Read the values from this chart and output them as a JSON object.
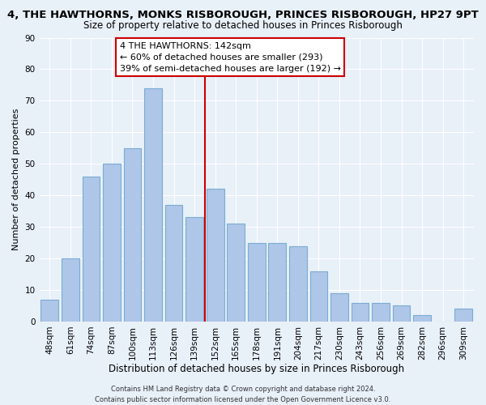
{
  "title": "4, THE HAWTHORNS, MONKS RISBOROUGH, PRINCES RISBOROUGH, HP27 9PT",
  "subtitle": "Size of property relative to detached houses in Princes Risborough",
  "xlabel": "Distribution of detached houses by size in Princes Risborough",
  "ylabel": "Number of detached properties",
  "footer_line1": "Contains HM Land Registry data © Crown copyright and database right 2024.",
  "footer_line2": "Contains public sector information licensed under the Open Government Licence v3.0.",
  "bar_labels": [
    "48sqm",
    "61sqm",
    "74sqm",
    "87sqm",
    "100sqm",
    "113sqm",
    "126sqm",
    "139sqm",
    "152sqm",
    "165sqm",
    "178sqm",
    "191sqm",
    "204sqm",
    "217sqm",
    "230sqm",
    "243sqm",
    "256sqm",
    "269sqm",
    "282sqm",
    "296sqm",
    "309sqm"
  ],
  "bar_values": [
    7,
    20,
    46,
    50,
    55,
    74,
    37,
    33,
    42,
    31,
    25,
    25,
    24,
    16,
    9,
    6,
    6,
    5,
    2,
    0,
    4
  ],
  "bar_color": "#aec6e8",
  "bar_edge_color": "#7aacd4",
  "vline_x": 7.5,
  "vline_color": "#cc0000",
  "annotation_title": "4 THE HAWTHORNS: 142sqm",
  "annotation_line1": "← 60% of detached houses are smaller (293)",
  "annotation_line2": "39% of semi-detached houses are larger (192) →",
  "annotation_box_color": "#ffffff",
  "annotation_box_edge": "#cc0000",
  "ylim": [
    0,
    90
  ],
  "background_color": "#e8f0f8",
  "grid_color": "#ffffff",
  "title_fontsize": 9.5,
  "subtitle_fontsize": 8.5,
  "xlabel_fontsize": 8.5,
  "ylabel_fontsize": 8,
  "tick_fontsize": 7.5,
  "annotation_fontsize": 8,
  "footer_fontsize": 6
}
